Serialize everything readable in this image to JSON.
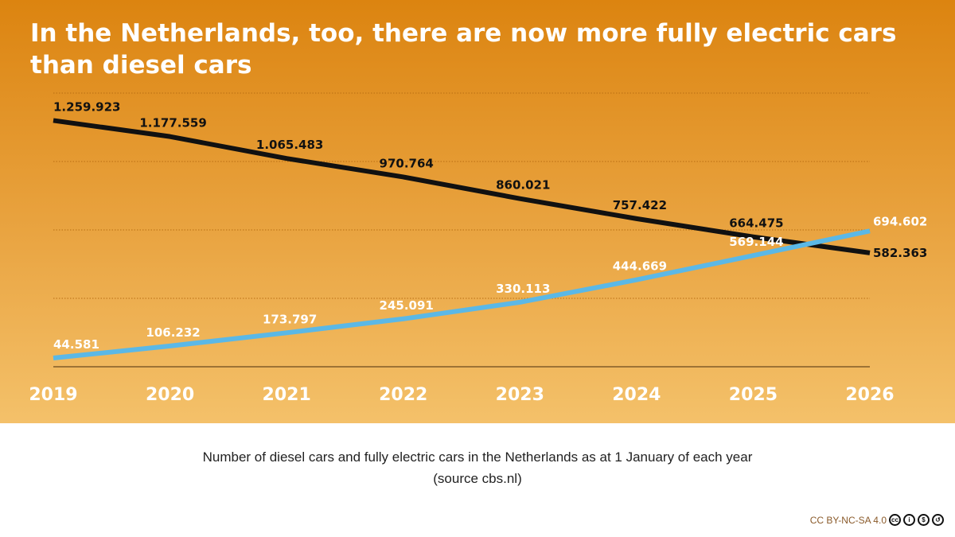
{
  "chart_data": {
    "type": "line",
    "title": "In the Netherlands, too, there are now more fully electric cars than diesel cars",
    "categories": [
      "2019",
      "2020",
      "2021",
      "2022",
      "2023",
      "2024",
      "2025",
      "2026"
    ],
    "series": [
      {
        "key": "diesel",
        "color": "#111111",
        "values": [
          1259923,
          1177559,
          1065483,
          970764,
          860021,
          757422,
          664475,
          582363
        ],
        "labels": [
          "1.259.923",
          "1.177.559",
          "1.065.483",
          "970.764",
          "860.021",
          "757.422",
          "664.475",
          "582.363"
        ]
      },
      {
        "key": "electric",
        "color": "#5bb8e6",
        "values": [
          44581,
          106232,
          173797,
          245091,
          330113,
          444669,
          569144,
          694602
        ],
        "labels": [
          "44.581",
          "106.232",
          "173.797",
          "245.091",
          "330.113",
          "444.669",
          "569.144",
          "694.602"
        ]
      }
    ],
    "ylim": [
      0,
      1400000
    ],
    "gridlines": [
      350000,
      700000,
      1050000,
      1400000
    ],
    "grid": true,
    "background_color": "#e39a30"
  },
  "caption": {
    "line1": "Number of diesel cars and fully electric cars in the Netherlands as at 1 January of each year",
    "line2": "(source cbs.nl)"
  },
  "license": {
    "text": "CC BY-NC-SA 4.0",
    "icons": [
      "cc-icon",
      "by-icon",
      "nc-icon",
      "sa-icon"
    ]
  }
}
